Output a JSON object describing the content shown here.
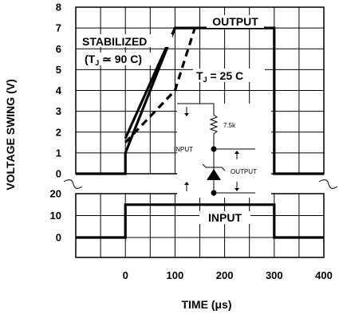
{
  "chart_data": [
    {
      "type": "line",
      "xlabel": "TIME (μs)",
      "ylabel": "VOLTAGE SWING (V)",
      "x_ticks": [
        "0",
        "100",
        "200",
        "300",
        "400"
      ],
      "y_ticks": [
        "0",
        "1",
        "2",
        "3",
        "4",
        "5",
        "6",
        "7",
        "8"
      ],
      "xlim": [
        -100,
        400
      ],
      "ylim": [
        0,
        8
      ],
      "grid": true,
      "series": [
        {
          "name": "OUTPUT",
          "style": "solid",
          "x": [
            -100,
            0,
            0,
            100,
            300,
            300,
            400
          ],
          "y": [
            0,
            0,
            1.0,
            7.0,
            7.0,
            0,
            0
          ]
        },
        {
          "name": "STABILIZED (TJ ≃ 90 C)",
          "style": "solid",
          "x": [
            0,
            100
          ],
          "y": [
            1.7,
            7.0
          ]
        },
        {
          "name": "TJ = 25 C",
          "style": "dashed",
          "x": [
            0,
            100,
            120,
            140
          ],
          "y": [
            1.5,
            4.0,
            5.5,
            7.0
          ]
        }
      ],
      "annotations": [
        "OUTPUT",
        "STABILIZED",
        "(TJ ≃ 90 C)",
        "TJ = 25 C"
      ]
    },
    {
      "type": "line",
      "xlabel": "TIME (μs)",
      "y_ticks": [
        "0",
        "10",
        "20"
      ],
      "ylim": [
        0,
        20
      ],
      "grid": true,
      "series": [
        {
          "name": "INPUT",
          "style": "solid",
          "x": [
            -100,
            0,
            0,
            300,
            300,
            400
          ],
          "y": [
            0,
            0,
            15,
            15,
            0,
            0
          ]
        }
      ],
      "annotations": [
        "INPUT"
      ]
    }
  ],
  "inset": {
    "input_label": "INPUT",
    "output_label": "OUTPUT",
    "resistor_label": "7.5k"
  },
  "axis_text": {
    "ylabel": "VOLTAGE SWING (V)",
    "xlabel": "TIME (μs)"
  },
  "labels": {
    "output": "OUTPUT",
    "stabilized": "STABILIZED",
    "stabilized_tj_open": "(T",
    "stabilized_tj_sub": "J",
    "stabilized_tj_rest": " ≃ 90 C)",
    "tj25_t": "T",
    "tj25_sub": "J",
    "tj25_rest": " = 25 C",
    "input": "INPUT"
  },
  "top_y_ticks": [
    "0",
    "1",
    "2",
    "3",
    "4",
    "5",
    "6",
    "7",
    "8"
  ],
  "bottom_y_ticks": [
    "0",
    "10",
    "20"
  ],
  "x_ticks": [
    "0",
    "100",
    "200",
    "300",
    "400"
  ]
}
